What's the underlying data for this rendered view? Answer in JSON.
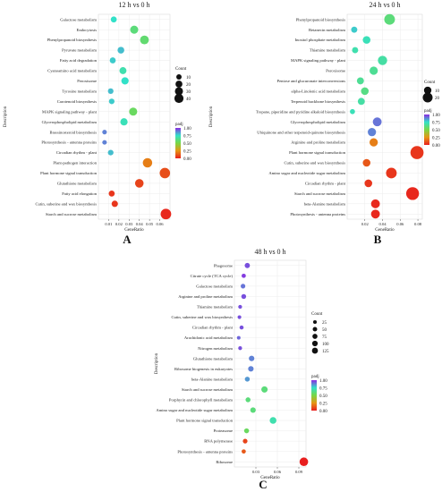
{
  "colors": {
    "high_padj": "#8a2be2",
    "mid_padj": "#33e0c0",
    "low_padj": "#7ad24a",
    "zero_padj": "#e81e1e"
  },
  "chart_data": [
    {
      "type": "scatter",
      "panel_label": "A",
      "title": "12 h vs 0 h",
      "xlabel": "GeneRatio",
      "ylabel": "Description",
      "xlim": [
        0,
        0.07
      ],
      "xticks": [
        "0.01",
        "0.02",
        "0.03",
        "0.04",
        "0.05",
        "0.06"
      ],
      "grid": true,
      "legend_size": {
        "title": "Count",
        "labels": [
          "10",
          "20",
          "30",
          "40"
        ]
      },
      "legend_color": {
        "title": "padj",
        "labels": [
          "1.00",
          "0.75",
          "0.50",
          "0.25",
          "0.00"
        ]
      },
      "categories": [
        "Galactose metabolism",
        "Endocytosis",
        "Phenylpropanoid biosynthesis",
        "Pyruvate metabolism",
        "Fatty acid degradation",
        "Cyanoamino acid metabolism",
        "Peroxisome",
        "Tyrosine metabolism",
        "Carotenoid biosynthesis",
        "MAPK signaling pathway - plant",
        "Glycerophospholipid metabolism",
        "Brassinosteroid biosynthesis",
        "Photosynthesis - antenna proteins",
        "Circadian rhythm - plant",
        "Plant-pathogen interaction",
        "Plant hormone signal transduction",
        "Glutathione metabolism",
        "Fatty acid elongation",
        "Cutin, suberine and wax biosynthesis",
        "Starch and sucrose metabolism"
      ],
      "x": [
        0.015,
        0.035,
        0.045,
        0.022,
        0.014,
        0.024,
        0.026,
        0.012,
        0.013,
        0.034,
        0.025,
        0.006,
        0.006,
        0.012,
        0.048,
        0.065,
        0.04,
        0.013,
        0.016,
        0.066
      ],
      "count": [
        5,
        12,
        15,
        7,
        5,
        8,
        9,
        4,
        4,
        12,
        9,
        2,
        2,
        4,
        18,
        23,
        14,
        5,
        6,
        24
      ],
      "padj": [
        0.75,
        0.6,
        0.58,
        0.8,
        0.78,
        0.7,
        0.75,
        0.8,
        0.78,
        0.55,
        0.72,
        0.88,
        0.88,
        0.8,
        0.2,
        0.1,
        0.08,
        0.05,
        0.05,
        0.02
      ]
    },
    {
      "type": "scatter",
      "panel_label": "B",
      "title": "24 h vs 0 h",
      "xlabel": "GeneRatio",
      "ylabel": "Description",
      "xlim": [
        0,
        0.085
      ],
      "xticks": [
        "0.02",
        "0.04",
        "0.06",
        "0.08"
      ],
      "grid": true,
      "legend_size": {
        "title": "Count",
        "labels": [
          "10",
          "20"
        ]
      },
      "legend_color": {
        "title": "padj",
        "labels": [
          "1.00",
          "0.75",
          "0.50",
          "0.25",
          "0.00"
        ]
      },
      "categories": [
        "Phenylpropanoid biosynthesis",
        "Betanecin metabolism",
        "Inositol phosphate metabolism",
        "Thiamine metabolism",
        "MAPK signaling pathway - plant",
        "Peroxisome",
        "Pentose and glucuronate interconversions",
        "alpha-Linolenic acid metabolism",
        "Terpenoid backbone biosynthesis",
        "Tropane, piperidine and pyridine alkaloid biosynthesis",
        "Glycerophospholipid metabolism",
        "Ubiquinone and other terpenoid-quinone biosynthesis",
        "Arginine and proline metabolism",
        "Plant hormone signal transduction",
        "Cutin, suberine and wax biosynthesis",
        "Amino sugar and nucleotide sugar metabolism",
        "Circadian rhythm - plant",
        "Starch and sucrose metabolism",
        "beta-Alanine metabolism",
        "Photosynthesis - antenna proteins"
      ],
      "x": [
        0.048,
        0.008,
        0.022,
        0.009,
        0.04,
        0.03,
        0.015,
        0.02,
        0.016,
        0.006,
        0.034,
        0.028,
        0.03,
        0.079,
        0.022,
        0.05,
        0.024,
        0.074,
        0.032,
        0.032
      ],
      "count": [
        10,
        2,
        4,
        2,
        7,
        5,
        3,
        4,
        3,
        1,
        6,
        5,
        5,
        17,
        4,
        10,
        4,
        16,
        6,
        6
      ],
      "padj": [
        0.6,
        0.78,
        0.72,
        0.7,
        0.68,
        0.65,
        0.65,
        0.62,
        0.68,
        0.72,
        0.9,
        0.88,
        0.2,
        0.05,
        0.12,
        0.05,
        0.05,
        0.02,
        0.02,
        0.02
      ]
    },
    {
      "type": "scatter",
      "panel_label": "C",
      "title": "48 h vs 0 h",
      "xlabel": "GeneRatio",
      "ylabel": "Description",
      "xlim": [
        0,
        0.1
      ],
      "xticks": [
        "0.03",
        "0.06",
        "0.09"
      ],
      "grid": true,
      "legend_size": {
        "title": "Count",
        "labels": [
          "25",
          "50",
          "75",
          "100",
          "125"
        ]
      },
      "legend_color": {
        "title": "padj",
        "labels": [
          "1.00",
          "0.75",
          "0.50",
          "0.25",
          "0.00"
        ]
      },
      "categories": [
        "Phagosome",
        "Citrate cycle (TCA cycle)",
        "Galactose metabolism",
        "Arginine and proline metabolism",
        "Thiamine metabolism",
        "Cutin, suberine and wax biosynthesis",
        "Circadian rhythm - plant",
        "Arachidonic acid metabolism",
        "Nitrogen metabolism",
        "Glutathione metabolism",
        "Ribosome biogenesis in eukaryotes",
        "beta-Alanine metabolism",
        "Starch and sucrose metabolism",
        "Porphyrin and chlorophyll metabolism",
        "Amino sugar and nucleotide sugar metabolism",
        "Plant hormone signal transduction",
        "Proteasome",
        "RNA polymerase",
        "Photosynthesis - antenna proteins",
        "Ribosome"
      ],
      "x": [
        0.018,
        0.013,
        0.012,
        0.013,
        0.008,
        0.007,
        0.01,
        0.006,
        0.008,
        0.024,
        0.023,
        0.018,
        0.042,
        0.019,
        0.026,
        0.054,
        0.017,
        0.015,
        0.013,
        0.097
      ],
      "count": [
        25,
        10,
        15,
        18,
        6,
        5,
        8,
        4,
        6,
        30,
        30,
        20,
        50,
        20,
        30,
        60,
        20,
        15,
        10,
        125
      ],
      "padj": [
        0.95,
        0.98,
        0.9,
        0.95,
        0.95,
        0.95,
        0.95,
        0.92,
        0.95,
        0.88,
        0.88,
        0.85,
        0.6,
        0.6,
        0.6,
        0.7,
        0.55,
        0.08,
        0.12,
        0.0
      ]
    }
  ]
}
